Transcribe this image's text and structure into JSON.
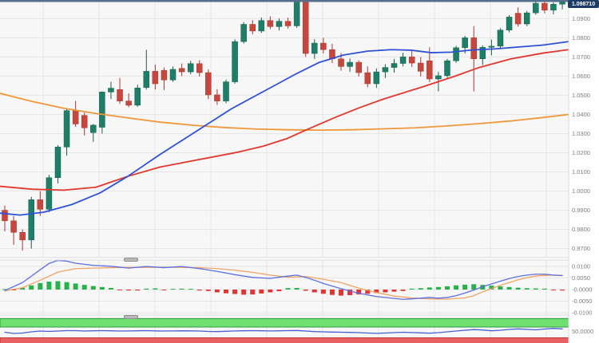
{
  "chart_data": {
    "type": "candlestick-with-indicators",
    "title": "",
    "last_price_label": "1.098710",
    "price_axis_labels": [
      "1.0900",
      "1.0800",
      "1.0700",
      "1.0600",
      "1.0500",
      "1.0400",
      "1.0300",
      "1.0200",
      "1.0100",
      "1.0000",
      "0.9900",
      "0.9800",
      "0.9700"
    ],
    "macd_axis_labels": [
      "0.0100",
      "0.0050",
      "-0.0000",
      "-0.0050",
      "-0.0100"
    ],
    "rsi_axis_labels": [
      "50.0000"
    ],
    "candles": [
      [
        0.99,
        0.9925,
        0.979,
        0.9845
      ],
      [
        0.9845,
        0.987,
        0.972,
        0.9785
      ],
      [
        0.9785,
        0.98,
        0.969,
        0.9745
      ],
      [
        0.9745,
        0.997,
        0.97,
        0.9955
      ],
      [
        0.9955,
        1.0,
        0.987,
        0.9905
      ],
      [
        0.9905,
        1.0085,
        0.989,
        1.007
      ],
      [
        1.007,
        1.024,
        1.004,
        1.023
      ],
      [
        1.023,
        1.043,
        1.0185,
        1.042
      ],
      [
        1.042,
        1.047,
        1.0335,
        1.035
      ],
      [
        1.0395,
        1.041,
        1.029,
        1.033
      ],
      [
        1.0305,
        1.035,
        1.0257,
        1.0344
      ],
      [
        1.0333,
        1.052,
        1.03,
        1.0517
      ],
      [
        1.0517,
        1.057,
        1.048,
        1.0537
      ],
      [
        1.053,
        1.059,
        1.0455,
        1.047
      ],
      [
        1.047,
        1.051,
        1.0438,
        1.0448
      ],
      [
        1.0448,
        1.0555,
        1.044,
        1.0538
      ],
      [
        1.054,
        1.0737,
        1.053,
        1.0625
      ],
      [
        1.0625,
        1.066,
        1.053,
        1.056
      ],
      [
        1.063,
        1.0645,
        1.0527,
        1.058
      ],
      [
        1.058,
        1.065,
        1.057,
        1.0635
      ],
      [
        1.064,
        1.0665,
        1.06,
        1.0622
      ],
      [
        1.0622,
        1.068,
        1.061,
        1.0665
      ],
      [
        1.0665,
        1.0683,
        1.0598,
        1.0618
      ],
      [
        1.0618,
        1.0635,
        1.048,
        1.0502
      ],
      [
        1.0502,
        1.0532,
        1.045,
        1.047
      ],
      [
        1.047,
        1.0582,
        1.0458,
        1.057
      ],
      [
        1.057,
        1.0792,
        1.056,
        1.078
      ],
      [
        1.078,
        1.0882,
        1.077,
        1.087
      ],
      [
        1.087,
        1.0892,
        1.0818,
        1.0835
      ],
      [
        1.0835,
        1.0906,
        1.0825,
        1.089
      ],
      [
        1.089,
        1.0912,
        1.0845,
        1.0858
      ],
      [
        1.0858,
        1.09,
        1.0838,
        1.0886
      ],
      [
        1.0886,
        1.0905,
        1.0848,
        1.0862
      ],
      [
        1.0862,
        1.1,
        1.0852,
        1.0992
      ],
      [
        1.0992,
        1.1005,
        1.07,
        1.0718
      ],
      [
        1.0718,
        1.0792,
        1.069,
        1.0772
      ],
      [
        1.0772,
        1.08,
        1.0718,
        1.0738
      ],
      [
        1.0738,
        1.0768,
        1.0668,
        1.069
      ],
      [
        1.069,
        1.072,
        1.0628,
        1.065
      ],
      [
        1.065,
        1.0692,
        1.0622,
        1.0672
      ],
      [
        1.0672,
        1.0682,
        1.0598,
        1.0618
      ],
      [
        1.0618,
        1.065,
        1.0542,
        1.056
      ],
      [
        1.056,
        1.064,
        1.0538,
        1.0622
      ],
      [
        1.0622,
        1.0662,
        1.059,
        1.0645
      ],
      [
        1.0645,
        1.069,
        1.0618,
        1.0666
      ],
      [
        1.0666,
        1.0722,
        1.065,
        1.07
      ],
      [
        1.07,
        1.073,
        1.0648,
        1.0668
      ],
      [
        1.0668,
        1.07,
        1.0598,
        1.0625
      ],
      [
        1.068,
        1.075,
        1.0568,
        1.0585
      ],
      [
        1.0585,
        1.0622,
        1.052,
        1.0602
      ],
      [
        1.0602,
        1.069,
        1.059,
        1.068
      ],
      [
        1.068,
        1.0758,
        1.067,
        1.0748
      ],
      [
        1.0748,
        1.081,
        1.0718,
        1.08
      ],
      [
        1.08,
        1.086,
        1.052,
        1.069
      ],
      [
        1.069,
        1.076,
        1.0658,
        1.075
      ],
      [
        1.075,
        1.079,
        1.0708,
        1.0756
      ],
      [
        1.0756,
        1.085,
        1.074,
        1.084
      ],
      [
        1.084,
        1.0918,
        1.0828,
        1.0908
      ],
      [
        1.0928,
        1.0958,
        1.0858,
        1.0872
      ],
      [
        1.0872,
        1.094,
        1.086,
        1.093
      ],
      [
        1.093,
        1.0988,
        1.092,
        1.098
      ],
      [
        1.098,
        1.0995,
        1.0928,
        1.0944
      ],
      [
        1.0944,
        1.0985,
        1.0922,
        1.0975
      ],
      [
        1.0975,
        1.1,
        1.0948,
        1.0987
      ]
    ],
    "ma_fast_blue": [
      [
        0,
        0.9885
      ],
      [
        25,
        0.9875
      ],
      [
        55,
        0.989
      ],
      [
        90,
        0.993
      ],
      [
        125,
        0.999
      ],
      [
        160,
        1.0077
      ],
      [
        200,
        1.019
      ],
      [
        245,
        1.031
      ],
      [
        290,
        1.043
      ],
      [
        330,
        1.052
      ],
      [
        370,
        1.061
      ],
      [
        400,
        1.0672
      ],
      [
        430,
        1.071
      ],
      [
        460,
        1.073
      ],
      [
        490,
        1.0738
      ],
      [
        515,
        1.0735
      ],
      [
        540,
        1.0722
      ],
      [
        565,
        1.0725
      ],
      [
        590,
        1.0736
      ],
      [
        620,
        1.0742
      ],
      [
        650,
        1.0752
      ],
      [
        680,
        1.0762
      ],
      [
        712,
        1.078
      ]
    ],
    "ma_mid_red": [
      [
        0,
        1.0025
      ],
      [
        40,
        1.001
      ],
      [
        80,
        1.0005
      ],
      [
        120,
        1.002
      ],
      [
        160,
        1.0077
      ],
      [
        200,
        1.0125
      ],
      [
        250,
        1.0165
      ],
      [
        300,
        1.0205
      ],
      [
        330,
        1.0235
      ],
      [
        360,
        1.0275
      ],
      [
        385,
        1.0322
      ],
      [
        420,
        1.0385
      ],
      [
        450,
        1.0435
      ],
      [
        480,
        1.048
      ],
      [
        530,
        1.0545
      ],
      [
        570,
        1.06
      ],
      [
        600,
        1.0645
      ],
      [
        640,
        1.069
      ],
      [
        680,
        1.072
      ],
      [
        712,
        1.0738
      ]
    ],
    "ma_slow_orange": [
      [
        0,
        1.051
      ],
      [
        40,
        1.0468
      ],
      [
        80,
        1.0432
      ],
      [
        120,
        1.0405
      ],
      [
        160,
        1.0382
      ],
      [
        200,
        1.036
      ],
      [
        240,
        1.0344
      ],
      [
        280,
        1.0332
      ],
      [
        320,
        1.0324
      ],
      [
        360,
        1.032
      ],
      [
        400,
        1.0318
      ],
      [
        440,
        1.032
      ],
      [
        480,
        1.0325
      ],
      [
        520,
        1.033
      ],
      [
        560,
        1.034
      ],
      [
        600,
        1.0352
      ],
      [
        640,
        1.0366
      ],
      [
        680,
        1.0384
      ],
      [
        712,
        1.04
      ]
    ],
    "macd": {
      "histogram": [
        0.0002,
        -0.0003,
        0.0008,
        0.0018,
        0.0028,
        0.0034,
        0.0036,
        0.0032,
        0.0026,
        0.002,
        0.0015,
        0.0011,
        0.0007,
        -0.0003,
        -0.0004,
        -0.0004,
        0.0004,
        0.0005,
        -0.0003,
        0.0003,
        0.0004,
        0.0003,
        -0.0004,
        -0.0006,
        -0.0012,
        -0.0016,
        -0.0019,
        -0.0022,
        -0.0021,
        -0.0017,
        -0.0012,
        -0.0007,
        0.0006,
        0.0007,
        -0.0005,
        -0.0012,
        -0.0018,
        -0.0023,
        -0.0026,
        -0.0024,
        -0.0021,
        -0.0018,
        -0.0015,
        -0.0012,
        -0.0009,
        -0.0006,
        0.0004,
        0.0006,
        0.0009,
        0.0011,
        0.0014,
        0.0018,
        0.0021,
        0.0023,
        0.002,
        0.0017,
        0.0014,
        0.0011,
        0.0008,
        0.0006,
        0.0005,
        0.0004,
        -0.0003,
        -0.0004
      ],
      "macd_line": [
        [
          0,
          -0.0004
        ],
        [
          2,
          0.003
        ],
        [
          4,
          0.0085
        ],
        [
          5,
          0.0112
        ],
        [
          6,
          0.0125
        ],
        [
          7,
          0.0122
        ],
        [
          8,
          0.0113
        ],
        [
          10,
          0.0104
        ],
        [
          12,
          0.01
        ],
        [
          14,
          0.0092
        ],
        [
          16,
          0.0099
        ],
        [
          18,
          0.0094
        ],
        [
          20,
          0.0099
        ],
        [
          22,
          0.009
        ],
        [
          24,
          0.0078
        ],
        [
          26,
          0.0064
        ],
        [
          28,
          0.0052
        ],
        [
          30,
          0.0048
        ],
        [
          32,
          0.0058
        ],
        [
          33,
          0.0062
        ],
        [
          34,
          0.0052
        ],
        [
          35,
          0.004
        ],
        [
          36,
          0.0026
        ],
        [
          38,
          0.0004
        ],
        [
          40,
          -0.0016
        ],
        [
          42,
          -0.003
        ],
        [
          44,
          -0.0038
        ],
        [
          45,
          -0.0042
        ],
        [
          46,
          -0.004
        ],
        [
          47,
          -0.0037
        ],
        [
          48,
          -0.0034
        ],
        [
          49,
          -0.0037
        ],
        [
          50,
          -0.0034
        ],
        [
          51,
          -0.0026
        ],
        [
          52,
          -0.0015
        ],
        [
          53,
          -0.0002
        ],
        [
          54,
          0.0012
        ],
        [
          55,
          0.0024
        ],
        [
          56,
          0.0036
        ],
        [
          57,
          0.0047
        ],
        [
          58,
          0.0056
        ],
        [
          59,
          0.0062
        ],
        [
          60,
          0.0066
        ],
        [
          61,
          0.0066
        ],
        [
          62,
          0.0062
        ],
        [
          63,
          0.006
        ]
      ],
      "signal_line": [
        [
          0,
          -0.0006
        ],
        [
          2,
          0.0008
        ],
        [
          4,
          0.004
        ],
        [
          6,
          0.0075
        ],
        [
          8,
          0.009
        ],
        [
          10,
          0.0092
        ],
        [
          12,
          0.0094
        ],
        [
          14,
          0.0095
        ],
        [
          16,
          0.0095
        ],
        [
          18,
          0.0096
        ],
        [
          20,
          0.0095
        ],
        [
          22,
          0.0094
        ],
        [
          24,
          0.009
        ],
        [
          26,
          0.0083
        ],
        [
          28,
          0.0074
        ],
        [
          30,
          0.0062
        ],
        [
          32,
          0.0053
        ],
        [
          34,
          0.0056
        ],
        [
          36,
          0.0044
        ],
        [
          38,
          0.003
        ],
        [
          40,
          0.0006
        ],
        [
          42,
          -0.0013
        ],
        [
          44,
          -0.0028
        ],
        [
          46,
          -0.0036
        ],
        [
          48,
          -0.004
        ],
        [
          50,
          -0.0041
        ],
        [
          52,
          -0.0036
        ],
        [
          53,
          -0.0026
        ],
        [
          54,
          -0.001
        ],
        [
          55,
          0.0004
        ],
        [
          56,
          0.0018
        ],
        [
          57,
          0.003
        ],
        [
          58,
          0.0042
        ],
        [
          59,
          0.0051
        ],
        [
          60,
          0.0058
        ],
        [
          61,
          0.0061
        ],
        [
          62,
          0.0062
        ],
        [
          63,
          0.0061
        ]
      ]
    },
    "rsi": {
      "values": [
        49,
        47.5,
        48,
        49.5,
        50.5,
        50,
        50.5,
        51,
        51,
        50.5,
        50.8,
        51,
        50.8,
        50.5,
        50.6,
        50.8,
        51,
        50.7,
        50.5,
        50.6,
        50.8,
        50.7,
        50.5,
        50,
        49.8,
        50.2,
        50.6,
        50.8,
        51,
        50.8,
        50.6,
        50.8,
        51,
        51.2,
        50.5,
        49.8,
        49.5,
        49.2,
        49,
        48.8,
        48.5,
        48,
        47.6,
        48,
        48.5,
        49,
        48.6,
        48.2,
        47.8,
        48.5,
        49.5,
        50.5,
        51.5,
        52.3,
        51.8,
        50.8,
        51.5,
        52.5,
        53.2,
        52.6,
        52,
        53,
        53.8,
        53.2
      ],
      "overbought_level": 70,
      "oversold_level": 30,
      "mid_label": "50.0000"
    },
    "colors": {
      "background": "#f7f7f7",
      "grid": "#e6e6e6",
      "axis_text": "#7a7a7a",
      "axis_bg": "#ffffff",
      "top_border": "#54708e",
      "panel_border": "#d9d9d9",
      "candle_up": "#1e7e67",
      "candle_up_border": "#14604e",
      "candle_down": "#c7473e",
      "candle_down_border": "#a33830",
      "ma_fast": "#2d52d8",
      "ma_mid": "#e3372e",
      "ma_slow": "#f0973b",
      "macd_line": "#5d6fe0",
      "macd_signal": "#f2a263",
      "hist_up": "#27b24b",
      "hist_down": "#e33434",
      "rsi_line": "#4a5ed2",
      "band_overbought": "#6fdf70",
      "band_overbought_border": "#2f9e44",
      "band_oversold": "#e66161",
      "band_oversold_border": "#bf3434",
      "price_tag_bg": "#1c3c66",
      "price_tag_text": "#ffffff",
      "handle": "#b9b9b9",
      "handle_border": "#8f8f8f"
    }
  }
}
